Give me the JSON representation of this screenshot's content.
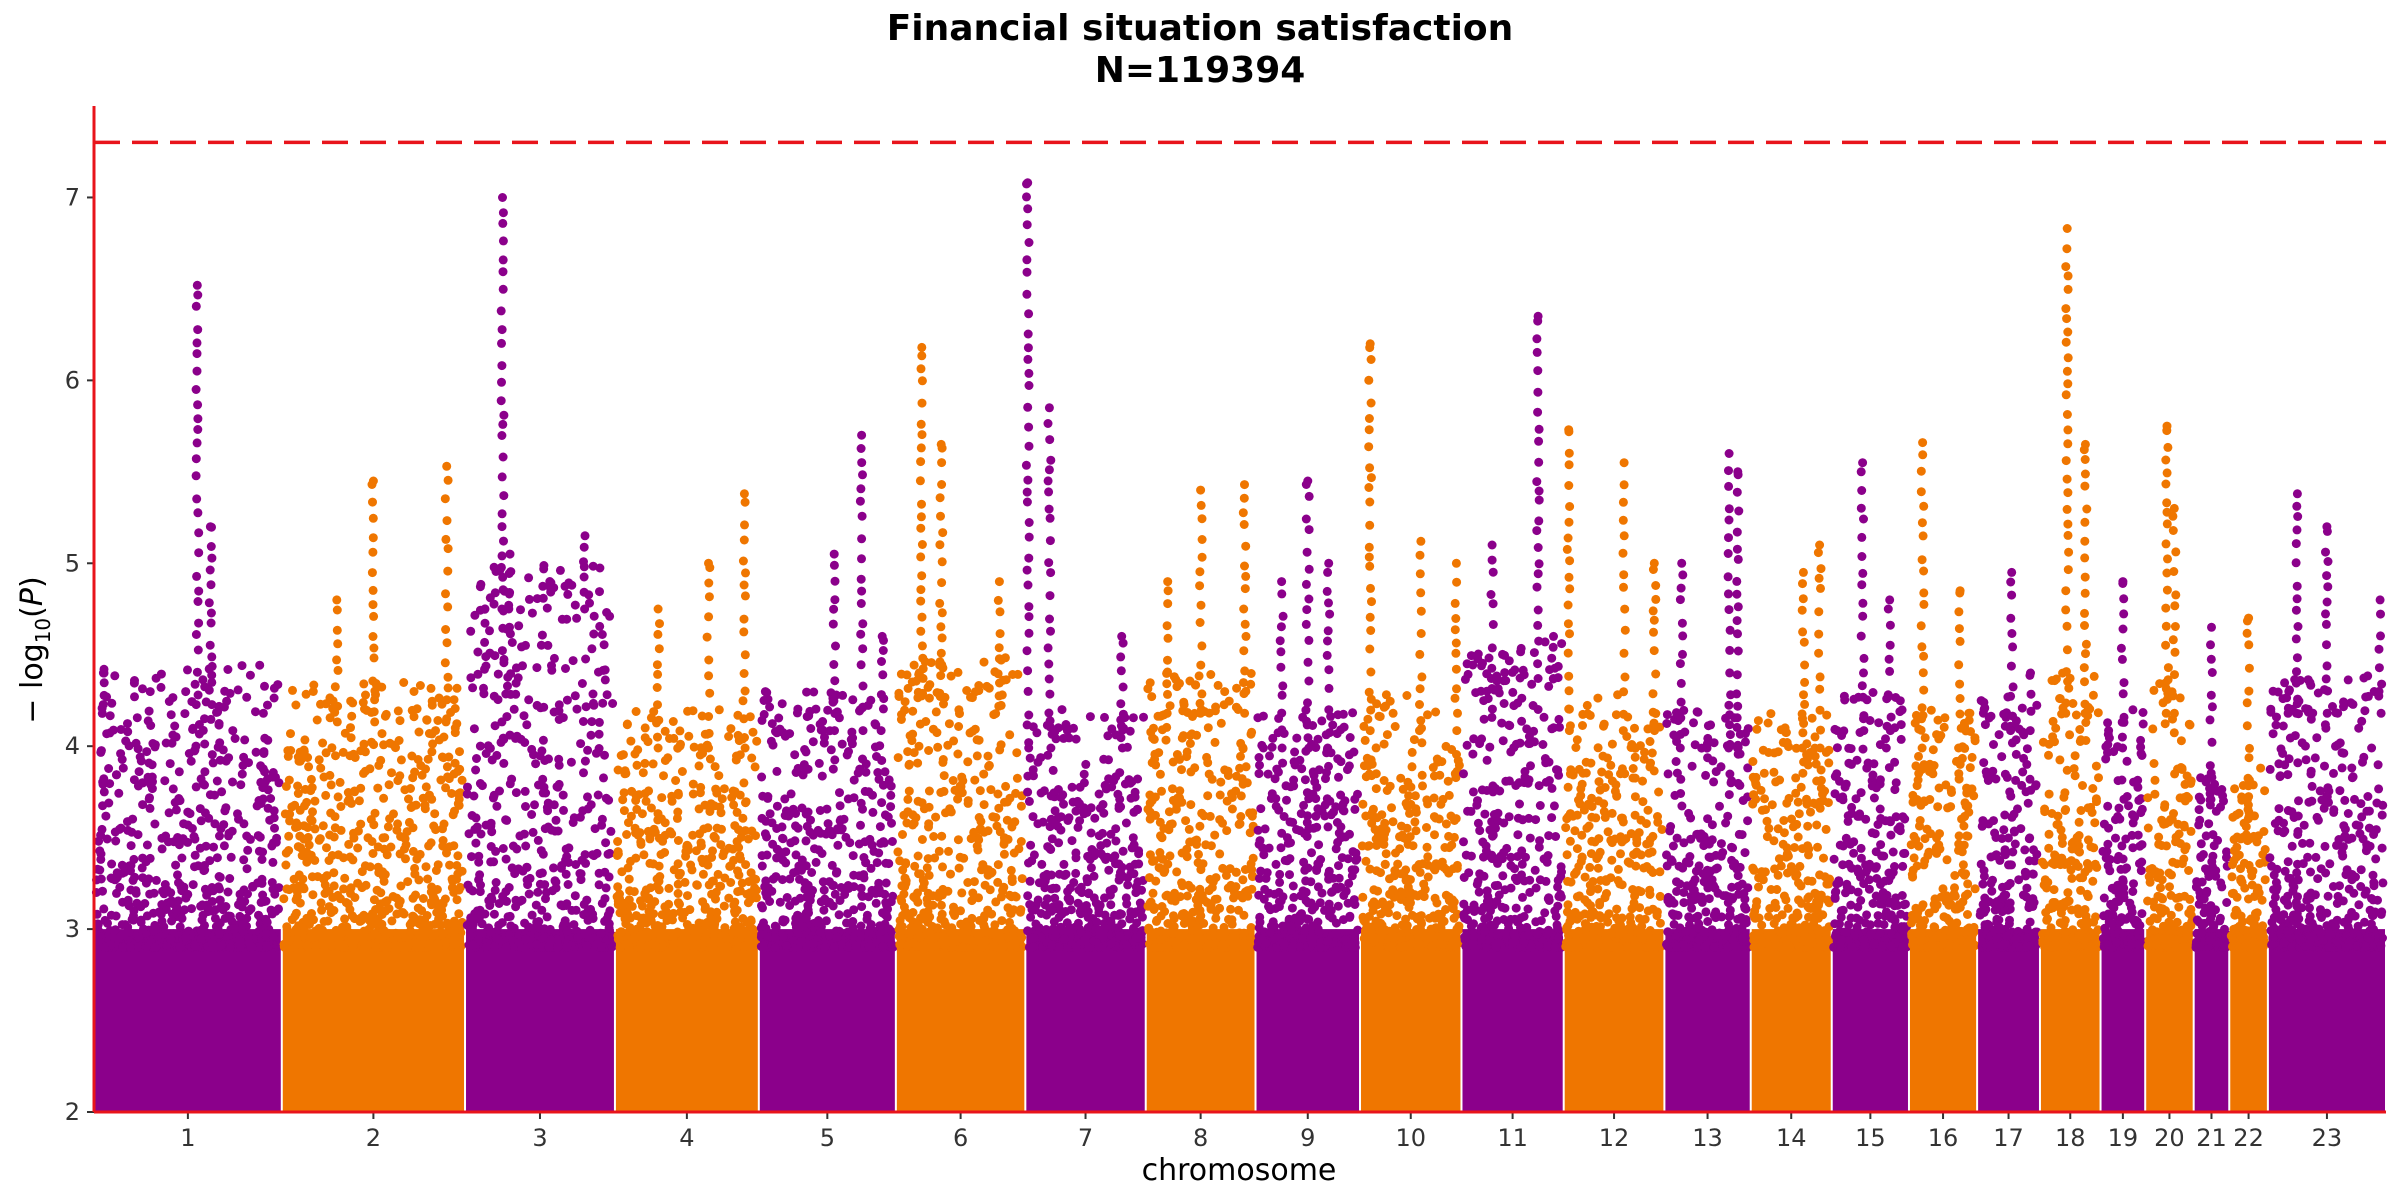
{
  "chart_data": {
    "type": "scatter",
    "title": "Financial situation satisfaction",
    "subtitle": "N=119394",
    "xlabel": "chromosome",
    "ylabel": "−log10(P)",
    "ylim": [
      2,
      7.5
    ],
    "y_ticks": [
      2,
      3,
      4,
      5,
      6,
      7
    ],
    "grid": false,
    "legend": "none",
    "significance_line": {
      "value": 7.30103,
      "style": "dashed",
      "color": "#e8141b"
    },
    "colors": {
      "odd": "#8b008b",
      "even": "#ef7600",
      "axis": "#e8141b"
    },
    "chromosomes": [
      {
        "label": "1",
        "length": 248,
        "base_max": 4.45,
        "peaks": [
          [
            0.55,
            6.52
          ],
          [
            0.62,
            5.2
          ],
          [
            0.05,
            4.4
          ]
        ]
      },
      {
        "label": "2",
        "length": 242,
        "base_max": 4.35,
        "peaks": [
          [
            0.3,
            4.8
          ],
          [
            0.5,
            5.45
          ],
          [
            0.9,
            5.53
          ]
        ]
      },
      {
        "label": "3",
        "length": 198,
        "base_max": 5.0,
        "peaks": [
          [
            0.25,
            7.0
          ],
          [
            0.3,
            5.05
          ],
          [
            0.8,
            5.15
          ]
        ]
      },
      {
        "label": "4",
        "length": 190,
        "base_max": 4.2,
        "peaks": [
          [
            0.3,
            4.75
          ],
          [
            0.9,
            5.38
          ],
          [
            0.65,
            5.0
          ]
        ]
      },
      {
        "label": "5",
        "length": 181,
        "base_max": 4.3,
        "peaks": [
          [
            0.55,
            5.05
          ],
          [
            0.75,
            5.7
          ],
          [
            0.9,
            4.6
          ]
        ]
      },
      {
        "label": "6",
        "length": 171,
        "base_max": 4.5,
        "peaks": [
          [
            0.2,
            6.18
          ],
          [
            0.35,
            5.65
          ],
          [
            0.8,
            4.9
          ]
        ]
      },
      {
        "label": "7",
        "length": 159,
        "base_max": 4.2,
        "peaks": [
          [
            0.02,
            7.08
          ],
          [
            0.2,
            5.85
          ],
          [
            0.8,
            4.6
          ]
        ]
      },
      {
        "label": "8",
        "length": 145,
        "base_max": 4.4,
        "peaks": [
          [
            0.5,
            5.4
          ],
          [
            0.9,
            5.43
          ],
          [
            0.2,
            4.9
          ]
        ]
      },
      {
        "label": "9",
        "length": 138,
        "base_max": 4.2,
        "peaks": [
          [
            0.5,
            5.45
          ],
          [
            0.7,
            5.0
          ],
          [
            0.25,
            4.9
          ]
        ]
      },
      {
        "label": "10",
        "length": 134,
        "base_max": 4.3,
        "peaks": [
          [
            0.1,
            6.2
          ],
          [
            0.6,
            5.12
          ],
          [
            0.95,
            5.0
          ]
        ]
      },
      {
        "label": "11",
        "length": 135,
        "base_max": 4.6,
        "peaks": [
          [
            0.75,
            6.35
          ],
          [
            0.3,
            5.1
          ],
          [
            0.9,
            4.6
          ]
        ]
      },
      {
        "label": "12",
        "length": 133,
        "base_max": 4.3,
        "peaks": [
          [
            0.05,
            5.73
          ],
          [
            0.6,
            5.55
          ],
          [
            0.9,
            5.0
          ]
        ]
      },
      {
        "label": "13",
        "length": 114,
        "base_max": 4.2,
        "peaks": [
          [
            0.2,
            5.0
          ],
          [
            0.75,
            5.6
          ],
          [
            0.85,
            5.5
          ]
        ]
      },
      {
        "label": "14",
        "length": 107,
        "base_max": 4.2,
        "peaks": [
          [
            0.65,
            4.95
          ],
          [
            0.85,
            5.1
          ]
        ]
      },
      {
        "label": "15",
        "length": 102,
        "base_max": 4.3,
        "peaks": [
          [
            0.4,
            5.55
          ],
          [
            0.75,
            4.8
          ]
        ]
      },
      {
        "label": "16",
        "length": 90,
        "base_max": 4.2,
        "peaks": [
          [
            0.2,
            5.66
          ],
          [
            0.75,
            4.85
          ]
        ]
      },
      {
        "label": "17",
        "length": 83,
        "base_max": 4.3,
        "peaks": [
          [
            0.55,
            4.95
          ],
          [
            0.85,
            4.4
          ]
        ]
      },
      {
        "label": "18",
        "length": 80,
        "base_max": 4.4,
        "peaks": [
          [
            0.45,
            6.83
          ],
          [
            0.75,
            5.65
          ]
        ]
      },
      {
        "label": "19",
        "length": 59,
        "base_max": 4.2,
        "peaks": [
          [
            0.5,
            4.9
          ]
        ]
      },
      {
        "label": "20",
        "length": 64,
        "base_max": 4.4,
        "peaks": [
          [
            0.45,
            5.75
          ],
          [
            0.6,
            5.3
          ]
        ]
      },
      {
        "label": "21",
        "length": 47,
        "base_max": 3.9,
        "peaks": [
          [
            0.5,
            4.65
          ]
        ]
      },
      {
        "label": "22",
        "length": 51,
        "base_max": 3.9,
        "peaks": [
          [
            0.5,
            4.7
          ]
        ]
      },
      {
        "label": "23",
        "length": 156,
        "base_max": 4.4,
        "peaks": [
          [
            0.25,
            5.38
          ],
          [
            0.5,
            5.2
          ],
          [
            0.95,
            4.8
          ]
        ]
      }
    ]
  }
}
